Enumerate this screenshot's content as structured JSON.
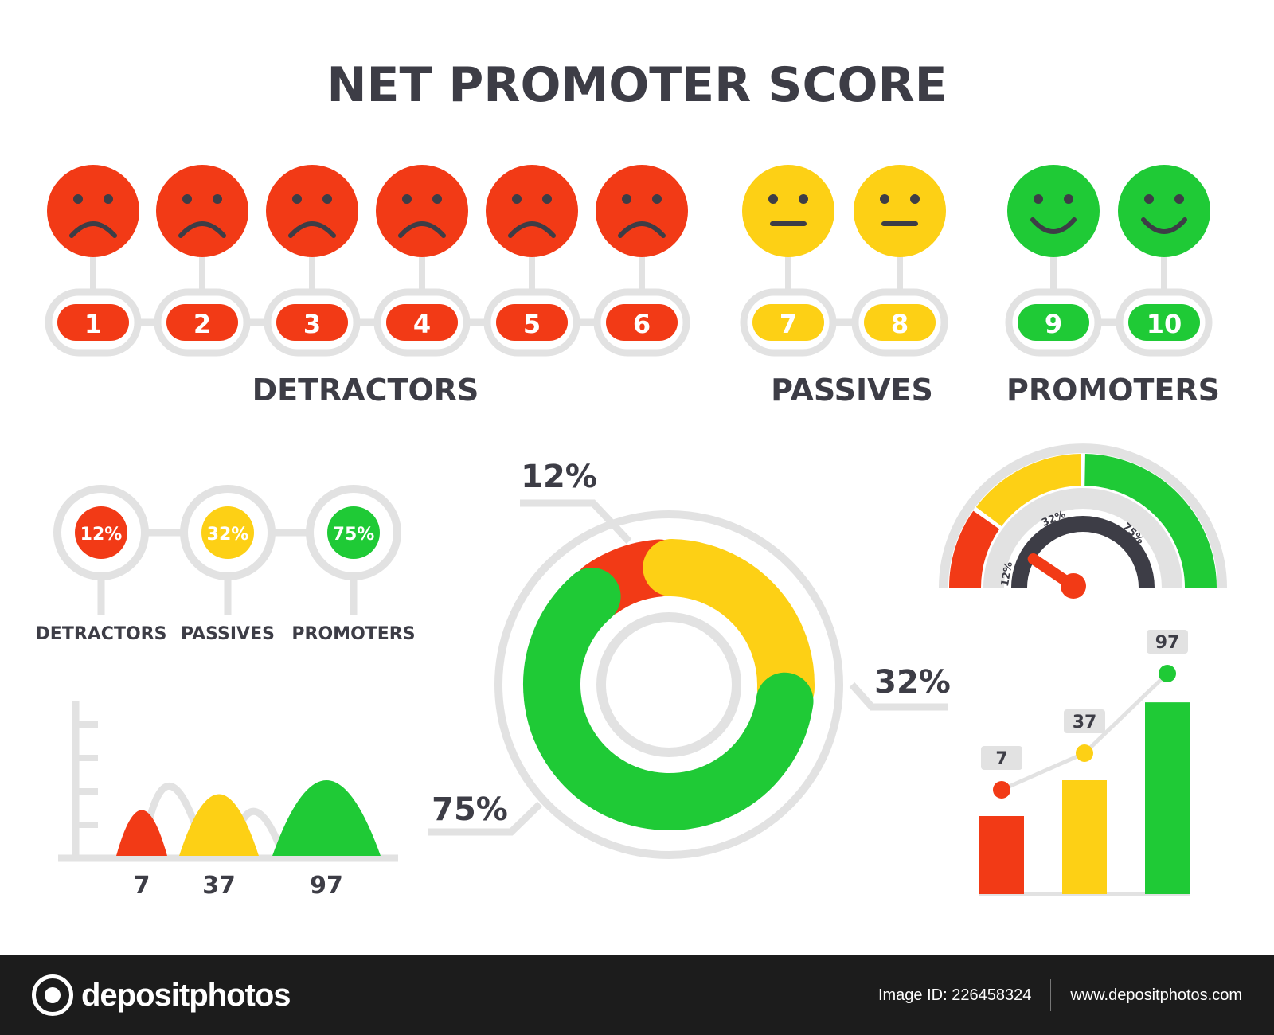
{
  "title": "NET PROMOTER SCORE",
  "colors": {
    "red": "#f23a16",
    "yellow": "#fdd015",
    "green": "#1fca36",
    "gray": "#e2e2e2",
    "dark": "#3d3d46"
  },
  "scale": {
    "faces": [
      {
        "score": "1",
        "mood": "sad",
        "color": "red"
      },
      {
        "score": "2",
        "mood": "sad",
        "color": "red"
      },
      {
        "score": "3",
        "mood": "sad",
        "color": "red"
      },
      {
        "score": "4",
        "mood": "sad",
        "color": "red"
      },
      {
        "score": "5",
        "mood": "sad",
        "color": "red"
      },
      {
        "score": "6",
        "mood": "sad",
        "color": "red"
      },
      {
        "score": "7",
        "mood": "neutral",
        "color": "yellow"
      },
      {
        "score": "8",
        "mood": "neutral",
        "color": "yellow"
      },
      {
        "score": "9",
        "mood": "happy",
        "color": "green"
      },
      {
        "score": "10",
        "mood": "happy",
        "color": "green"
      }
    ],
    "group_labels": [
      "DETRACTORS",
      "PASSIVES",
      "PROMOTERS"
    ]
  },
  "chart_data": [
    {
      "type": "pie",
      "chart": "percent-badges",
      "labels": [
        "DETRACTORS",
        "PASSIVES",
        "PROMOTERS"
      ],
      "values": [
        12,
        32,
        75
      ],
      "value_labels": [
        "12%",
        "32%",
        "75%"
      ]
    },
    {
      "type": "area",
      "chart": "peak-chart",
      "values": [
        7,
        37,
        97
      ],
      "value_labels": [
        "7",
        "37",
        "97"
      ],
      "ylim": [
        0,
        100
      ]
    },
    {
      "type": "pie",
      "chart": "donut",
      "values": [
        12,
        32,
        75
      ],
      "value_labels": [
        "12%",
        "32%",
        "75%"
      ]
    },
    {
      "type": "gauge",
      "chart": "gauge",
      "segments": [
        12,
        32,
        75
      ],
      "segment_labels": [
        "12%",
        "32%",
        "75%"
      ],
      "needle_value": 12
    },
    {
      "type": "bar",
      "chart": "bar-line",
      "values": [
        7,
        37,
        97
      ],
      "value_labels": [
        "7",
        "37",
        "97"
      ],
      "ylim": [
        0,
        100
      ]
    }
  ],
  "footer": {
    "brand": "depositphotos",
    "image_id": "Image ID: 226458324",
    "site": "www.depositphotos.com"
  }
}
